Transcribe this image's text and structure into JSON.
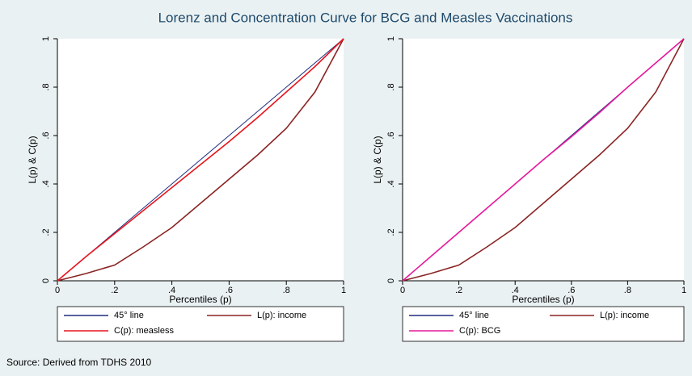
{
  "title": "Lorenz and Concentration Curve for BCG and Measles Vaccinations",
  "source": "Source: Derived from TDHS 2010",
  "chart_data": [
    {
      "type": "line",
      "xlabel": "Percentiles (p)",
      "ylabel": "L(p) & C(p)",
      "x": [
        0,
        0.1,
        0.2,
        0.3,
        0.4,
        0.5,
        0.6,
        0.7,
        0.8,
        0.9,
        1
      ],
      "series": [
        {
          "name": "45° line",
          "color": "#1f2f7f",
          "values": [
            0,
            0.1,
            0.2,
            0.3,
            0.4,
            0.5,
            0.6,
            0.7,
            0.8,
            0.9,
            1
          ]
        },
        {
          "name": "L(p): income",
          "color": "#8b2323",
          "values": [
            0,
            0.03,
            0.065,
            0.14,
            0.22,
            0.32,
            0.42,
            0.52,
            0.63,
            0.78,
            1
          ]
        },
        {
          "name": "C(p): measless",
          "color": "#e8141c",
          "values": [
            0,
            0.1,
            0.195,
            0.29,
            0.385,
            0.48,
            0.575,
            0.675,
            0.78,
            0.885,
            1
          ]
        }
      ],
      "xlim": [
        0,
        1
      ],
      "ylim": [
        0,
        1
      ],
      "xticks": [
        0,
        {
          "value": 0.2,
          "label": ".2"
        },
        {
          "value": 0.4,
          "label": ".4"
        },
        {
          "value": 0.6,
          "label": ".6"
        },
        {
          "value": 0.8,
          "label": ".8"
        },
        1
      ],
      "yticks": [
        0,
        {
          "value": 0.2,
          "label": ".2"
        },
        {
          "value": 0.4,
          "label": ".4"
        },
        {
          "value": 0.6,
          "label": ".6"
        },
        {
          "value": 0.8,
          "label": ".8"
        },
        1
      ]
    },
    {
      "type": "line",
      "xlabel": "Percentiles (p)",
      "ylabel": "L(p) & C(p)",
      "x": [
        0,
        0.1,
        0.2,
        0.3,
        0.4,
        0.5,
        0.6,
        0.7,
        0.8,
        0.9,
        1
      ],
      "series": [
        {
          "name": "45° line",
          "color": "#1f2f7f",
          "values": [
            0,
            0.1,
            0.2,
            0.3,
            0.4,
            0.5,
            0.6,
            0.7,
            0.8,
            0.9,
            1
          ]
        },
        {
          "name": "L(p): income",
          "color": "#8b2323",
          "values": [
            0,
            0.03,
            0.065,
            0.14,
            0.22,
            0.32,
            0.42,
            0.52,
            0.63,
            0.78,
            1
          ]
        },
        {
          "name": "C(p): BCG",
          "color": "#e6199b",
          "values": [
            0,
            0.1,
            0.2,
            0.3,
            0.4,
            0.5,
            0.595,
            0.695,
            0.8,
            0.9,
            1
          ]
        }
      ],
      "xlim": [
        0,
        1
      ],
      "ylim": [
        0,
        1
      ],
      "xticks": [
        0,
        {
          "value": 0.2,
          "label": ".2"
        },
        {
          "value": 0.4,
          "label": ".4"
        },
        {
          "value": 0.6,
          "label": ".6"
        },
        {
          "value": 0.8,
          "label": ".8"
        },
        1
      ],
      "yticks": [
        0,
        {
          "value": 0.2,
          "label": ".2"
        },
        {
          "value": 0.4,
          "label": ".4"
        },
        {
          "value": 0.6,
          "label": ".6"
        },
        {
          "value": 0.8,
          "label": ".8"
        },
        1
      ]
    }
  ]
}
